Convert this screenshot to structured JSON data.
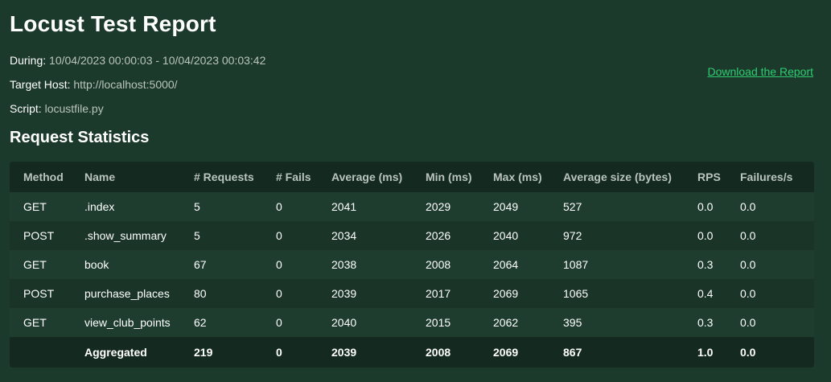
{
  "report": {
    "title": "Locust Test Report",
    "during_label": "During:",
    "during_value": "10/04/2023 00:00:03 - 10/04/2023 00:03:42",
    "host_label": "Target Host:",
    "host_value": "http://localhost:5000/",
    "script_label": "Script:",
    "script_value": "locustfile.py",
    "download_label": "Download the Report"
  },
  "stats": {
    "section_title": "Request Statistics",
    "headers": [
      "Method",
      "Name",
      "# Requests",
      "# Fails",
      "Average (ms)",
      "Min (ms)",
      "Max (ms)",
      "Average size (bytes)",
      "RPS",
      "Failures/s"
    ],
    "rows": [
      [
        "GET",
        ".index",
        "5",
        "0",
        "2041",
        "2029",
        "2049",
        "527",
        "0.0",
        "0.0"
      ],
      [
        "POST",
        ".show_summary",
        "5",
        "0",
        "2034",
        "2026",
        "2040",
        "972",
        "0.0",
        "0.0"
      ],
      [
        "GET",
        "book",
        "67",
        "0",
        "2038",
        "2008",
        "2064",
        "1087",
        "0.3",
        "0.0"
      ],
      [
        "POST",
        "purchase_places",
        "80",
        "0",
        "2039",
        "2017",
        "2069",
        "1065",
        "0.4",
        "0.0"
      ],
      [
        "GET",
        "view_club_points",
        "62",
        "0",
        "2040",
        "2015",
        "2062",
        "395",
        "0.3",
        "0.0"
      ]
    ],
    "aggregated": [
      "",
      "Aggregated",
      "219",
      "0",
      "2039",
      "2008",
      "2069",
      "867",
      "1.0",
      "0.0"
    ]
  },
  "colors": {
    "background": "#1c3a2c",
    "table_header": "#142a20",
    "link": "#2ecc71"
  }
}
